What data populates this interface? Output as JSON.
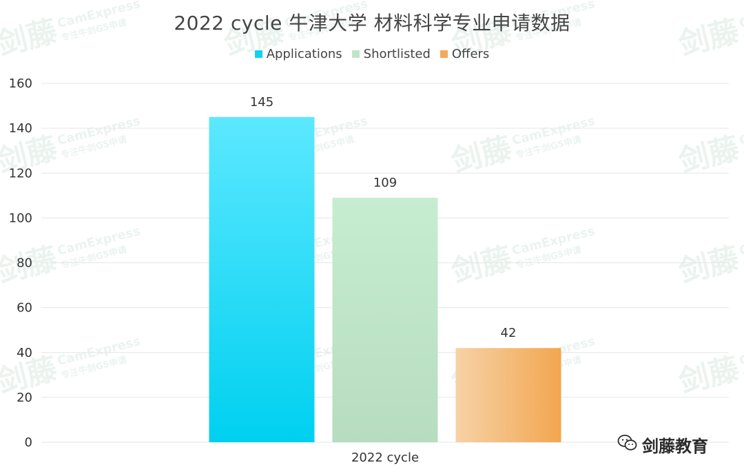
{
  "chart_data": {
    "type": "bar",
    "title": "2022 cycle 牛津大学 材料科学专业申请数据",
    "categories": [
      "2022 cycle"
    ],
    "series": [
      {
        "name": "Applications",
        "values": [
          145
        ],
        "color": "#0fd3f2"
      },
      {
        "name": "Shortlisted",
        "values": [
          109
        ],
        "color": "#bfe5c9"
      },
      {
        "name": "Offers",
        "values": [
          42
        ],
        "color": "#f3aa5c"
      }
    ],
    "ylim": [
      0,
      160
    ],
    "yticks": [
      0,
      20,
      40,
      60,
      80,
      100,
      120,
      140,
      160
    ],
    "grid": true,
    "legend": "top-center",
    "xlabel": "",
    "ylabel": ""
  },
  "watermark": {
    "brand_cn": "剑藤",
    "brand_en": "CamExpress",
    "tagline": "专注牛剑G5申请"
  },
  "footer": {
    "brand": "剑藤教育",
    "icon": "wechat-icon"
  }
}
